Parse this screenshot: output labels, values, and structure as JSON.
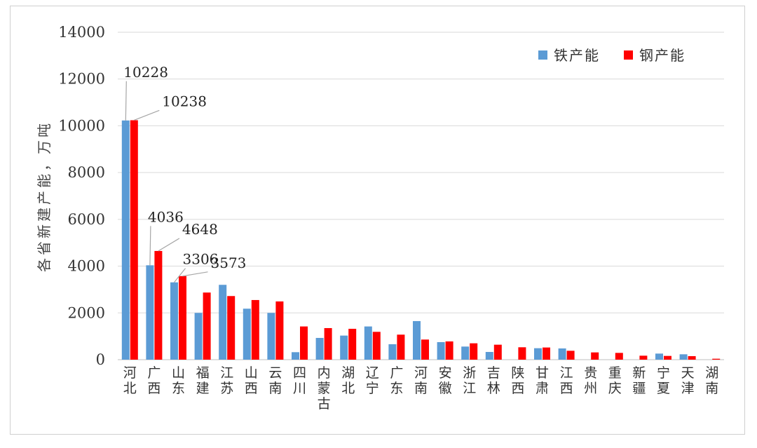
{
  "chart_data": {
    "type": "bar",
    "ylabel": "各省新建产能，万吨",
    "ylim": [
      0,
      14000
    ],
    "yticks": [
      "0",
      "2000",
      "4000",
      "6000",
      "8000",
      "10000",
      "12000",
      "14000"
    ],
    "grid": true,
    "legend_position": "top-right",
    "categories": [
      "河北",
      "广西",
      "山东",
      "福建",
      "江苏",
      "山西",
      "云南",
      "四川",
      "内蒙古",
      "湖北",
      "辽宁",
      "广东",
      "河南",
      "安徽",
      "浙江",
      "吉林",
      "陕西",
      "甘肃",
      "江西",
      "贵州",
      "重庆",
      "新疆",
      "宁夏",
      "天津",
      "湖南"
    ],
    "series": [
      {
        "name": "铁产能",
        "color": "#5B9BD5",
        "values": [
          10228,
          4036,
          3306,
          2000,
          3200,
          2180,
          2000,
          320,
          930,
          1030,
          1420,
          660,
          1650,
          750,
          560,
          330,
          0,
          490,
          480,
          0,
          0,
          0,
          260,
          230,
          0
        ]
      },
      {
        "name": "钢产能",
        "color": "#FF0000",
        "values": [
          10238,
          4648,
          3573,
          2870,
          2720,
          2550,
          2490,
          1420,
          1350,
          1320,
          1190,
          1070,
          860,
          780,
          700,
          640,
          530,
          520,
          380,
          310,
          290,
          170,
          160,
          150,
          40
        ]
      }
    ],
    "annotations": [
      {
        "text": "10228",
        "series": 0,
        "category": 0
      },
      {
        "text": "10238",
        "series": 1,
        "category": 0
      },
      {
        "text": "4036",
        "series": 0,
        "category": 1
      },
      {
        "text": "4648",
        "series": 1,
        "category": 1
      },
      {
        "text": "3306",
        "series": 0,
        "category": 2
      },
      {
        "text": "3573",
        "series": 1,
        "category": 2
      }
    ]
  }
}
